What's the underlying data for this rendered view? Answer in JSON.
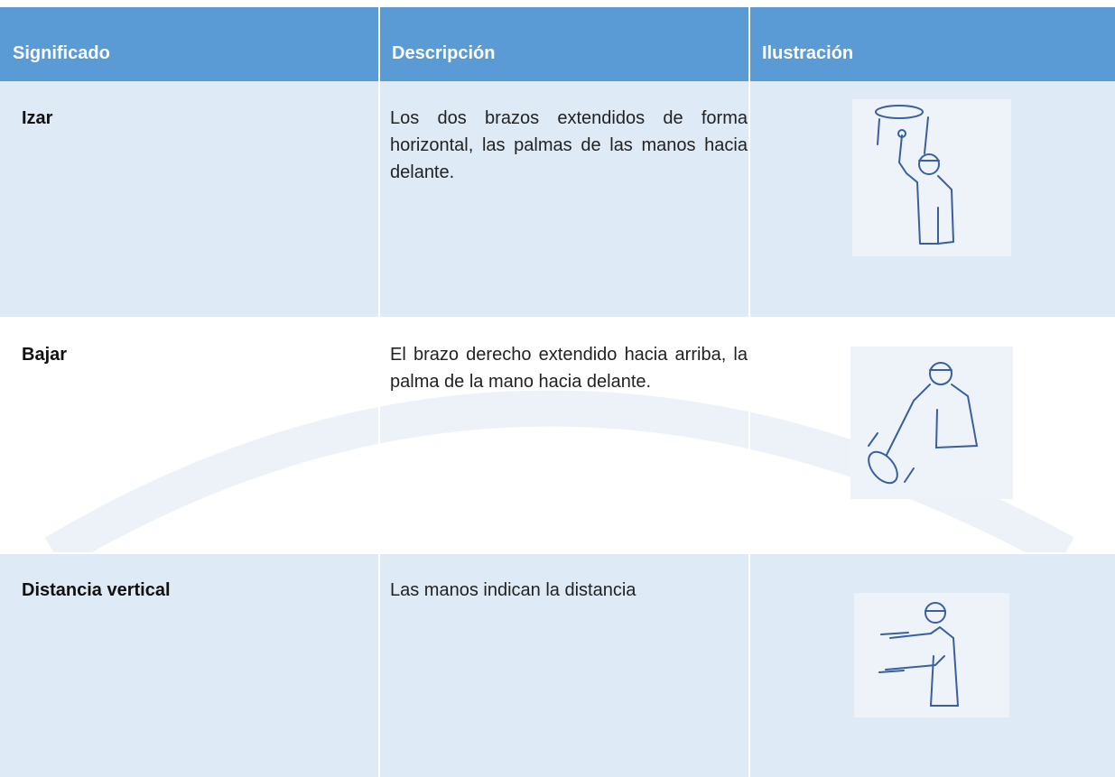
{
  "table": {
    "header": [
      "Significado",
      "Descripción",
      "Ilustración"
    ],
    "rows": [
      [
        "Izar",
        "Los dos brazos extendidos de forma horizontal, las palmas de las manos hacia delante."
      ],
      [
        "Bajar",
        "El brazo derecho extendido hacia arriba, la palma de la mano hacia delante."
      ],
      [
        "Distancia vertical",
        "Las manos indican la distancia"
      ]
    ]
  }
}
